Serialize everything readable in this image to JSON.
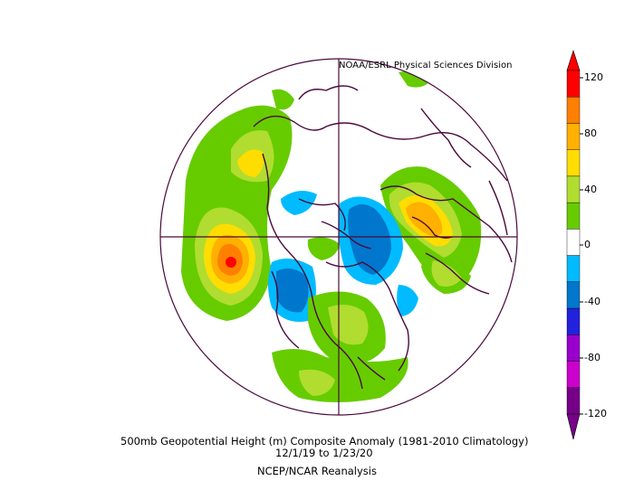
{
  "credit": "NOAA/ESRL Physical Sciences Division",
  "caption": {
    "line1": "500mb Geopotential Height (m) Composite Anomaly (1981-2010 Climatology)",
    "line2": "12/1/19   to 1/23/20",
    "line3": "NCEP/NCAR Reanalysis"
  },
  "colorbar": {
    "ticks": [
      "120",
      "80",
      "40",
      "0",
      "-40",
      "-80",
      "-120"
    ],
    "colors": [
      "#ff0000",
      "#ff7f00",
      "#ffb000",
      "#ffdd00",
      "#b0dd30",
      "#66cc00",
      "#ffffff",
      "#00bbff",
      "#0077cc",
      "#2222dd",
      "#9900cc",
      "#cc00cc",
      "#770088"
    ]
  },
  "map": {
    "projection": "polar stereographic, North Pole",
    "variable": "500mb geopotential height anomaly (m)"
  }
}
